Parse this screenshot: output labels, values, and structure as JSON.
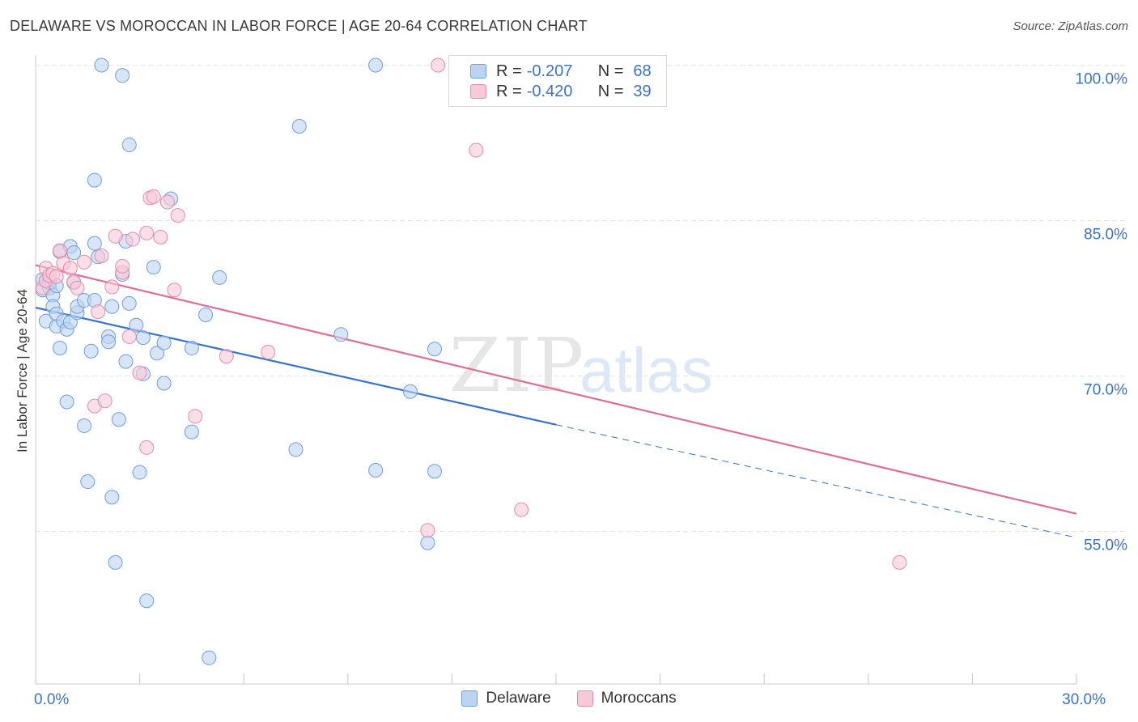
{
  "title": "DELAWARE VS MOROCCAN IN LABOR FORCE | AGE 20-64 CORRELATION CHART",
  "source": "Source: ZipAtlas.com",
  "watermark": {
    "zip": "ZIP",
    "atlas": "atlas"
  },
  "legend_top": {
    "r_label": "R =",
    "n_label": "N =",
    "rows": [
      {
        "r": "-0.207",
        "n": "68"
      },
      {
        "r": "-0.420",
        "n": "39"
      }
    ]
  },
  "colors": {
    "delaware_fill": "#bcd4f2",
    "delaware_stroke": "#6f9fdc",
    "delaware_line": "#3473d0",
    "moroccan_fill": "#f8c9d8",
    "moroccan_stroke": "#e88aaa",
    "moroccan_line": "#e26c96",
    "grid": "#e4e4e4",
    "tick_label": "#3b73c6"
  },
  "chart_data": {
    "type": "scatter",
    "title": "DELAWARE VS MOROCCAN IN LABOR FORCE | AGE 20-64 CORRELATION CHART",
    "xlabel": "",
    "ylabel": "In Labor Force | Age 20-64",
    "xlim": [
      0,
      30
    ],
    "ylim": [
      42,
      101
    ],
    "x_tick_labels": [
      {
        "value": 0,
        "label": "0.0%"
      },
      {
        "value": 30,
        "label": "30.0%"
      }
    ],
    "y_tick_labels": [
      {
        "value": 100,
        "label": "100.0%"
      },
      {
        "value": 85,
        "label": "85.0%"
      },
      {
        "value": 70,
        "label": "70.0%"
      },
      {
        "value": 55,
        "label": "55.0%"
      }
    ],
    "x_minor_ticks": [
      0,
      3,
      6,
      9,
      12,
      15,
      18,
      21,
      24,
      27,
      30
    ],
    "series": [
      {
        "name": "Delaware",
        "R": -0.207,
        "N": 68,
        "trend": {
          "x_start": 0,
          "y_start": 76.6,
          "x_end": 15,
          "y_end": 65.3,
          "dash_x_end": 30,
          "dash_y_end": 54.4
        },
        "points": [
          [
            0.2,
            79.3
          ],
          [
            0.2,
            78.3
          ],
          [
            0.3,
            79.2
          ],
          [
            0.3,
            75.3
          ],
          [
            0.4,
            78.5
          ],
          [
            0.4,
            79.3
          ],
          [
            0.5,
            77.8
          ],
          [
            0.5,
            76.7
          ],
          [
            0.6,
            74.8
          ],
          [
            0.6,
            76.0
          ],
          [
            0.7,
            82.0
          ],
          [
            0.7,
            72.7
          ],
          [
            0.8,
            75.3
          ],
          [
            0.9,
            74.5
          ],
          [
            0.9,
            67.5
          ],
          [
            1.0,
            75.2
          ],
          [
            1.0,
            82.5
          ],
          [
            1.1,
            81.9
          ],
          [
            1.1,
            79.0
          ],
          [
            1.2,
            76.1
          ],
          [
            1.2,
            76.7
          ],
          [
            1.4,
            77.3
          ],
          [
            1.4,
            65.2
          ],
          [
            1.5,
            59.8
          ],
          [
            1.6,
            72.4
          ],
          [
            1.7,
            77.3
          ],
          [
            1.7,
            82.8
          ],
          [
            1.7,
            88.9
          ],
          [
            1.8,
            81.5
          ],
          [
            1.9,
            100.0
          ],
          [
            2.1,
            73.8
          ],
          [
            2.1,
            73.3
          ],
          [
            2.2,
            58.3
          ],
          [
            2.2,
            76.7
          ],
          [
            2.3,
            52.0
          ],
          [
            2.4,
            65.8
          ],
          [
            2.5,
            99.0
          ],
          [
            2.5,
            79.8
          ],
          [
            2.6,
            71.4
          ],
          [
            2.6,
            83.0
          ],
          [
            2.7,
            92.3
          ],
          [
            2.7,
            77.0
          ],
          [
            2.9,
            74.9
          ],
          [
            3.0,
            60.7
          ],
          [
            3.1,
            73.7
          ],
          [
            3.1,
            70.2
          ],
          [
            3.2,
            48.3
          ],
          [
            3.4,
            80.5
          ],
          [
            3.5,
            72.2
          ],
          [
            3.7,
            73.2
          ],
          [
            3.7,
            69.3
          ],
          [
            3.9,
            87.1
          ],
          [
            4.5,
            72.7
          ],
          [
            4.5,
            64.6
          ],
          [
            4.9,
            75.9
          ],
          [
            5.0,
            42.8
          ],
          [
            5.3,
            79.5
          ],
          [
            7.6,
            94.1
          ],
          [
            7.5,
            62.9
          ],
          [
            8.8,
            74.0
          ],
          [
            9.8,
            100.0
          ],
          [
            9.8,
            60.9
          ],
          [
            10.8,
            68.5
          ],
          [
            11.3,
            53.9
          ],
          [
            11.5,
            72.6
          ],
          [
            11.5,
            60.8
          ],
          [
            0.4,
            79.0
          ],
          [
            0.6,
            78.7
          ]
        ]
      },
      {
        "name": "Moroccans",
        "R": -0.42,
        "N": 39,
        "trend": {
          "x_start": 0,
          "y_start": 80.7,
          "x_end": 30,
          "y_end": 56.7
        },
        "points": [
          [
            0.2,
            78.5
          ],
          [
            0.3,
            79.2
          ],
          [
            0.3,
            80.4
          ],
          [
            0.4,
            79.7
          ],
          [
            0.5,
            79.9
          ],
          [
            0.6,
            79.6
          ],
          [
            0.7,
            82.1
          ],
          [
            0.8,
            80.9
          ],
          [
            1.0,
            80.4
          ],
          [
            1.1,
            79.1
          ],
          [
            1.2,
            78.5
          ],
          [
            1.4,
            81.0
          ],
          [
            1.7,
            67.1
          ],
          [
            1.8,
            76.2
          ],
          [
            1.9,
            81.6
          ],
          [
            2.0,
            67.6
          ],
          [
            2.2,
            78.6
          ],
          [
            2.3,
            83.5
          ],
          [
            2.5,
            80.0
          ],
          [
            2.5,
            80.6
          ],
          [
            2.7,
            73.8
          ],
          [
            2.8,
            83.2
          ],
          [
            3.0,
            70.3
          ],
          [
            3.2,
            63.1
          ],
          [
            3.2,
            83.8
          ],
          [
            3.3,
            87.2
          ],
          [
            3.4,
            87.3
          ],
          [
            3.6,
            83.4
          ],
          [
            3.8,
            86.8
          ],
          [
            4.0,
            78.3
          ],
          [
            4.1,
            85.5
          ],
          [
            4.6,
            66.1
          ],
          [
            5.5,
            71.9
          ],
          [
            6.7,
            72.3
          ],
          [
            11.3,
            55.1
          ],
          [
            11.6,
            100.0
          ],
          [
            12.7,
            91.8
          ],
          [
            14.0,
            57.1
          ],
          [
            24.9,
            52.0
          ]
        ]
      }
    ]
  },
  "legend_bottom": {
    "items": [
      "Delaware",
      "Moroccans"
    ]
  }
}
